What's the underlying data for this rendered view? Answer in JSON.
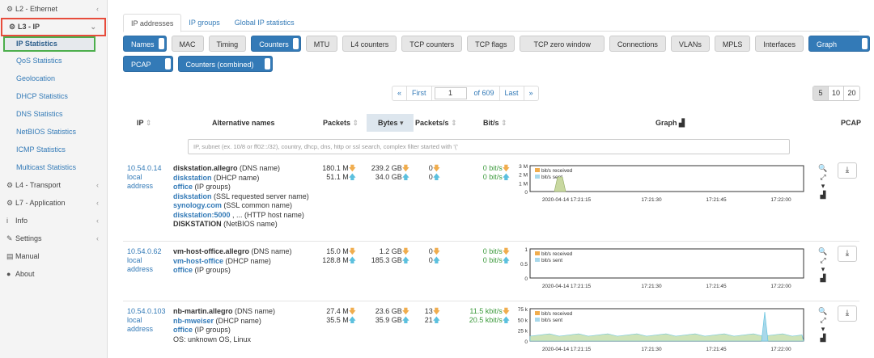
{
  "sidebar": {
    "items": [
      {
        "label": "L2 - Ethernet",
        "icon": "gear-icon"
      },
      {
        "label": "L3 - IP",
        "icon": "gear-icon"
      },
      {
        "label": "L4 - Transport",
        "icon": "gear-icon"
      },
      {
        "label": "L7 - Application",
        "icon": "gear-icon"
      },
      {
        "label": "Info",
        "icon": "info-icon"
      },
      {
        "label": "Settings",
        "icon": "wrench-icon"
      },
      {
        "label": "Manual",
        "icon": "book-icon"
      },
      {
        "label": "About",
        "icon": "info-circle-icon"
      }
    ],
    "l3_sub": [
      "IP Statistics",
      "QoS Statistics",
      "Geolocation",
      "DHCP Statistics",
      "DNS Statistics",
      "NetBIOS Statistics",
      "ICMP Statistics",
      "Multicast Statistics"
    ]
  },
  "tabs": [
    "IP addresses",
    "IP groups",
    "Global IP statistics"
  ],
  "toggles_row1": [
    "Names",
    "MAC",
    "Timing",
    "Counters",
    "MTU",
    "L4 counters",
    "TCP counters",
    "TCP flags",
    "TCP zero window",
    "Connections",
    "VLANs",
    "MPLS",
    "Interfaces",
    "Graph"
  ],
  "toggles_row2": [
    "PCAP",
    "Counters (combined)"
  ],
  "pager": {
    "first": "First",
    "page": "1",
    "of": "of 609",
    "last": "Last",
    "prev": "«",
    "next": "»"
  },
  "page_sizes": [
    "5",
    "10",
    "20"
  ],
  "columns": {
    "ip": "IP",
    "alt": "Alternative names",
    "packets": "Packets",
    "bytes": "Bytes",
    "pps": "Packets/s",
    "bps": "Bit/s",
    "graph": "Graph",
    "pcap": "PCAP"
  },
  "filter_placeholder": "IP, subnet (ex. 10/8 or ff02::/32), country, dhcp, dns, http or ssl search, complex filter started with '('",
  "graph_legend": {
    "received": "bit/s received",
    "sent": "bit/s sent"
  },
  "graph_ticks": [
    "2020-04-14 17:21:15",
    "17:21:30",
    "17:21:45",
    "17:22:00"
  ],
  "rows": [
    {
      "ip": "10.54.0.14",
      "l1": "local",
      "l2": "address",
      "names": [
        {
          "v": "diskstation.allegro",
          "t": " (DNS name)",
          "bold": true
        },
        {
          "v": "diskstation",
          "t": " (DHCP name)",
          "link": true
        },
        {
          "v": "office",
          "t": " (IP groups)",
          "link": true
        },
        {
          "v": "diskstation",
          "t": " (SSL requested server name)",
          "link": true
        },
        {
          "v": "synology.com",
          "t": " (SSL common name)",
          "link": true
        },
        {
          "v": "diskstation:5000",
          "t": " , ... (HTTP host name)",
          "link": true
        },
        {
          "v": "DISKSTATION",
          "t": " (NetBIOS name)",
          "bold": true
        }
      ],
      "pk_in": "180.1 M",
      "pk_out": "51.1 M",
      "by_in": "239.2 GB",
      "by_out": "34.0 GB",
      "pps_in": "0",
      "pps_out": "0",
      "bps_in": "0 bit/s",
      "bps_out": "0 bit/s",
      "y_ticks": [
        "3 M",
        "2 M",
        "1 M",
        "0"
      ]
    },
    {
      "ip": "10.54.0.62",
      "l1": "local",
      "l2": "address",
      "names": [
        {
          "v": "vm-host-office.allegro",
          "t": " (DNS name)",
          "bold": true
        },
        {
          "v": "vm-host-office",
          "t": " (DHCP name)",
          "link": true
        },
        {
          "v": "office",
          "t": " (IP groups)",
          "link": true
        }
      ],
      "pk_in": "15.0 M",
      "pk_out": "128.8 M",
      "by_in": "1.2 GB",
      "by_out": "185.3 GB",
      "pps_in": "0",
      "pps_out": "0",
      "bps_in": "0 bit/s",
      "bps_out": "0 bit/s",
      "y_ticks": [
        "1",
        "0.5",
        "0"
      ]
    },
    {
      "ip": "10.54.0.103",
      "l1": "local",
      "l2": "address",
      "names": [
        {
          "v": "nb-martin.allegro",
          "t": " (DNS name)",
          "bold": true
        },
        {
          "v": "nb-mweiser",
          "t": " (DHCP name)",
          "link": true
        },
        {
          "v": "office",
          "t": " (IP groups)",
          "link": true
        },
        {
          "v": "",
          "t": "OS: unknown OS, Linux"
        }
      ],
      "pk_in": "27.4 M",
      "pk_out": "35.5 M",
      "by_in": "23.6 GB",
      "by_out": "35.9 GB",
      "pps_in": "13",
      "pps_out": "21",
      "bps_in": "11.5 kbit/s",
      "bps_out": "20.5 kbit/s",
      "y_ticks": [
        "75 k",
        "50 k",
        "25 k",
        "0"
      ]
    }
  ]
}
